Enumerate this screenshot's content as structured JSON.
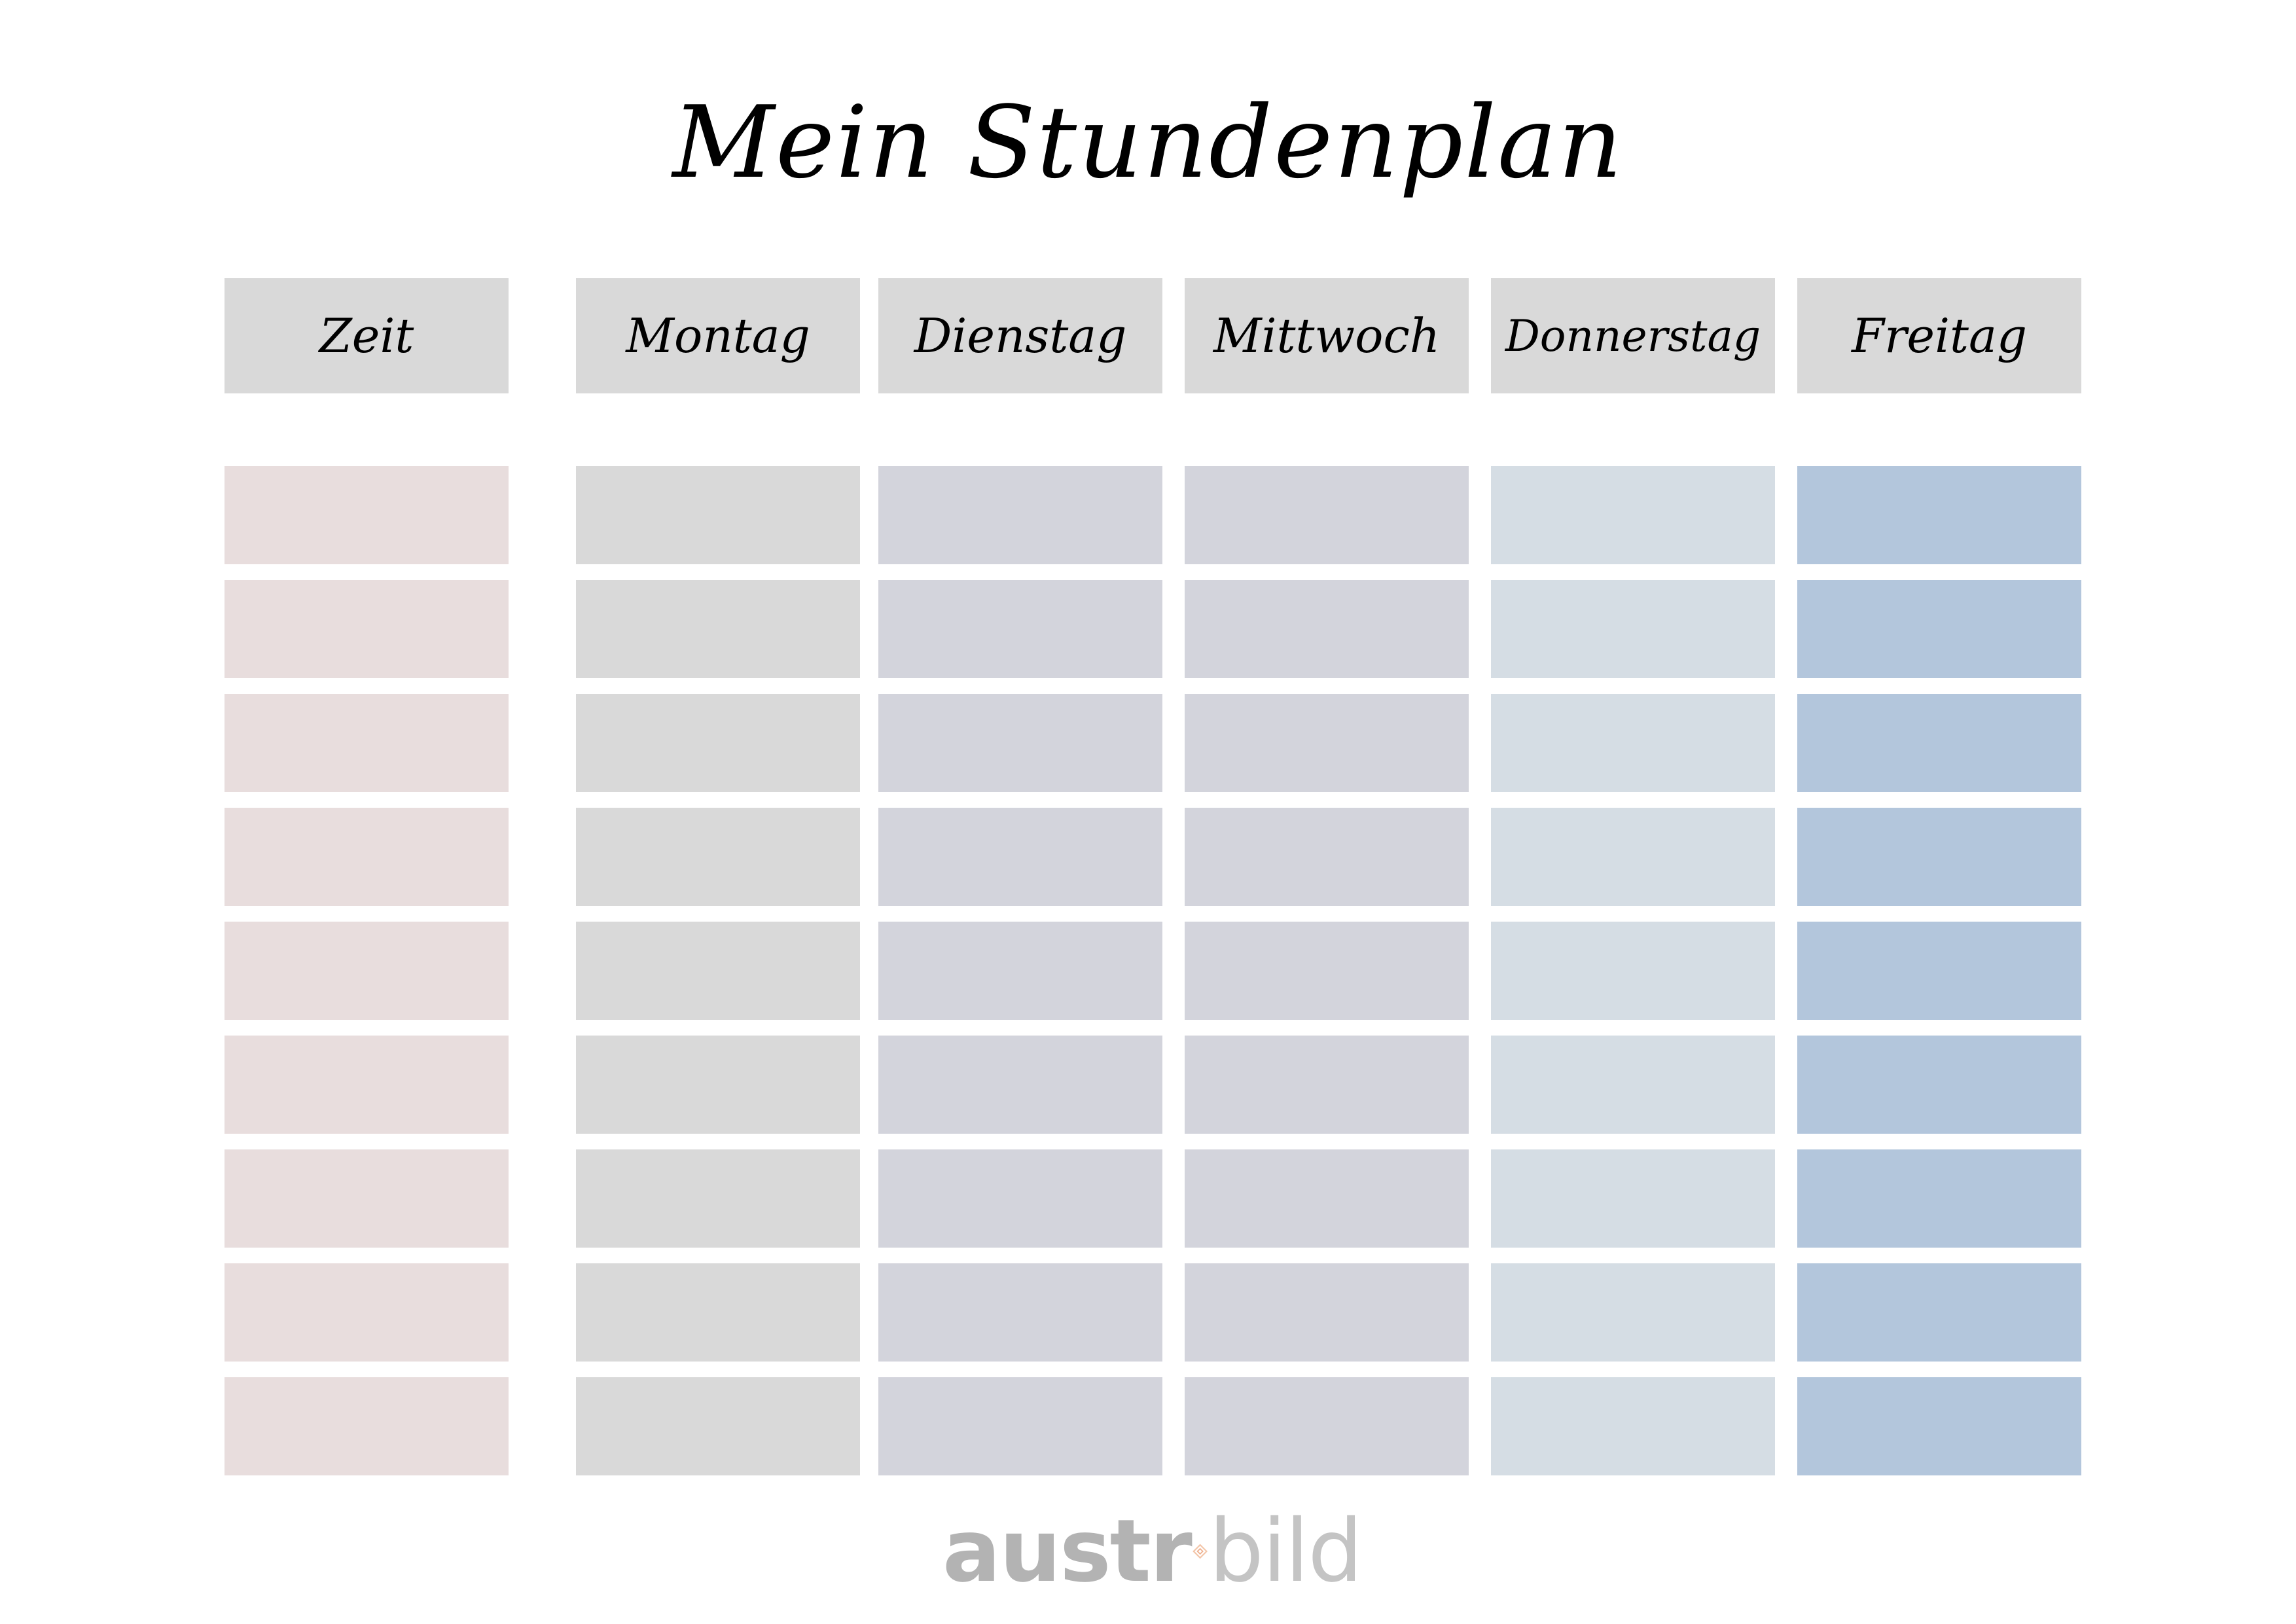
{
  "title": "Mein Stundenplan",
  "headers": {
    "time": "Zeit",
    "days": [
      "Montag",
      "Dienstag",
      "Mittwoch",
      "Donnerstag",
      "Freitag"
    ]
  },
  "row_count": 9,
  "colors": {
    "header": "#d9d9d9",
    "time_column": "#e8dddd",
    "montag": "#d9d9d9",
    "dienstag": "#d3d4dc",
    "mittwoch": "#d3d4dc",
    "donnerstag": "#d5dde4",
    "freitag": "#b3c6dc"
  },
  "logo": {
    "part_bold": "austr",
    "part_light": "bild",
    "icon": "diamond-logo-icon"
  }
}
